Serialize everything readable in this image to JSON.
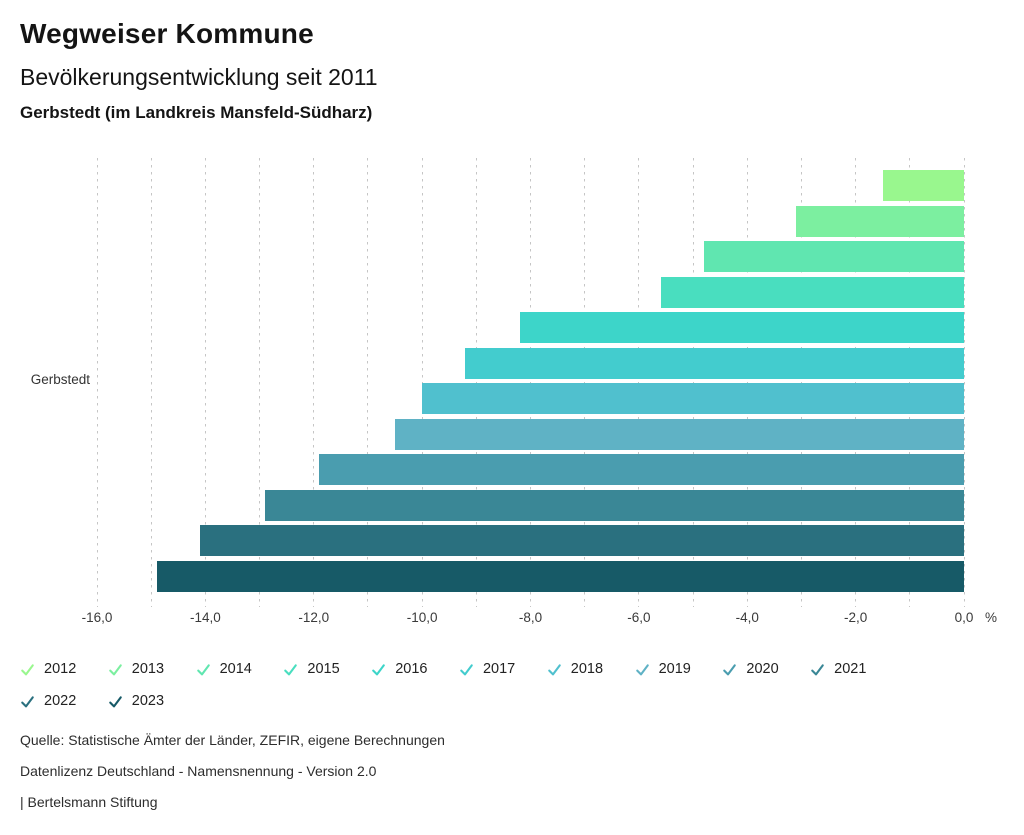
{
  "header": {
    "title": "Wegweiser Kommune",
    "subtitle": "Bevölkerungsentwicklung seit 2011",
    "region_line": "Gerbstedt (im Landkreis Mansfeld-Südharz)"
  },
  "chart_data": {
    "type": "bar",
    "orientation": "horizontal",
    "title": "Bevölkerungsentwicklung seit 2011",
    "subtitle": "Gerbstedt (im Landkreis Mansfeld-Südharz)",
    "category_label": "Gerbstedt",
    "unit_label": "%",
    "xlim": [
      -16,
      0
    ],
    "gridline_step": 1,
    "grid": true,
    "legend_position": "bottom",
    "x_ticks": [
      {
        "label": "-16,0",
        "value": -16
      },
      {
        "label": "-14,0",
        "value": -14
      },
      {
        "label": "-12,0",
        "value": -12
      },
      {
        "label": "-10,0",
        "value": -10
      },
      {
        "label": "-8,0",
        "value": -8
      },
      {
        "label": "-6,0",
        "value": -6
      },
      {
        "label": "-4,0",
        "value": -4
      },
      {
        "label": "-2,0",
        "value": -2
      },
      {
        "label": "0,0",
        "value": 0
      }
    ],
    "series": [
      {
        "year": "2012",
        "value": -1.5,
        "color": "#99F78E"
      },
      {
        "year": "2013",
        "value": -3.1,
        "color": "#7CEFA0"
      },
      {
        "year": "2014",
        "value": -4.8,
        "color": "#60E6B0"
      },
      {
        "year": "2015",
        "value": -5.6,
        "color": "#49DEBF"
      },
      {
        "year": "2016",
        "value": -8.2,
        "color": "#3DD5C9"
      },
      {
        "year": "2017",
        "value": -9.2,
        "color": "#43CCCE"
      },
      {
        "year": "2018",
        "value": -10.0,
        "color": "#50C0CE"
      },
      {
        "year": "2019",
        "value": -10.5,
        "color": "#5FB2C5"
      },
      {
        "year": "2020",
        "value": -11.9,
        "color": "#4A9DAF"
      },
      {
        "year": "2021",
        "value": -12.9,
        "color": "#3A8796"
      },
      {
        "year": "2022",
        "value": -14.1,
        "color": "#2A707F"
      },
      {
        "year": "2023",
        "value": -14.9,
        "color": "#175A67"
      }
    ]
  },
  "footer": {
    "source": "Quelle: Statistische Ämter der Länder, ZEFIR, eigene Berechnungen",
    "license": "Datenlizenz Deutschland - Namensnennung - Version 2.0",
    "attribution": "| Bertelsmann Stiftung"
  }
}
